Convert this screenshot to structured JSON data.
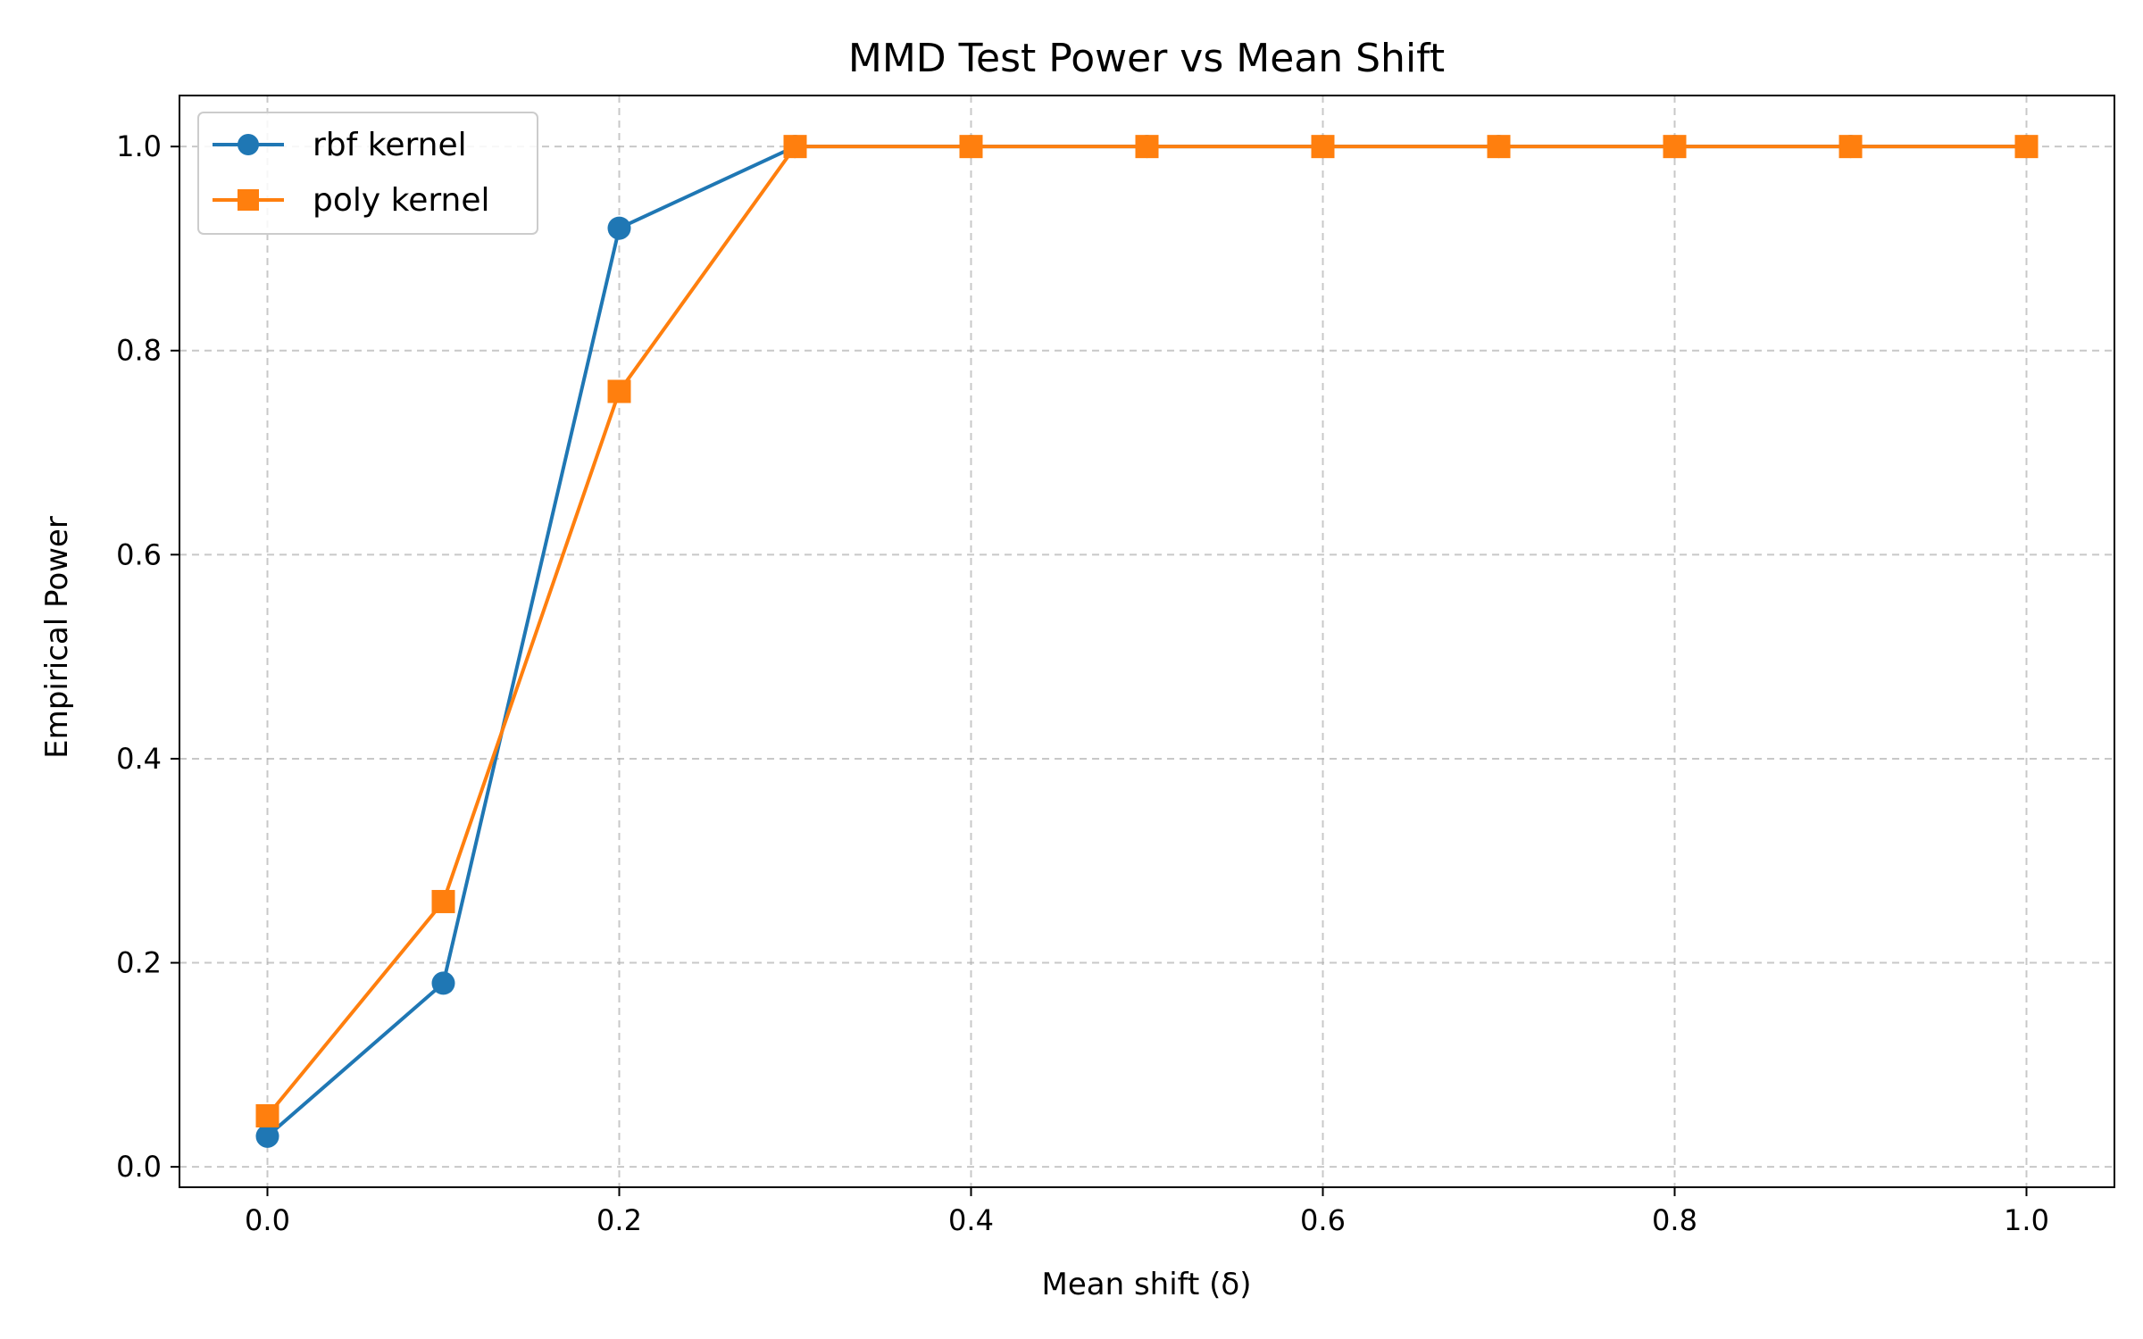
{
  "chart_data": {
    "type": "line",
    "title": "MMD Test Power vs Mean Shift",
    "xlabel": "Mean shift (δ)",
    "ylabel": "Empirical Power",
    "x": [
      0.0,
      0.1,
      0.2,
      0.3,
      0.4,
      0.5,
      0.6,
      0.7,
      0.8,
      0.9,
      1.0
    ],
    "xlim": [
      -0.05,
      1.05
    ],
    "ylim": [
      -0.02,
      1.05
    ],
    "xticks": [
      0.0,
      0.2,
      0.4,
      0.6,
      0.8,
      1.0
    ],
    "xtick_labels": [
      "0.0",
      "0.2",
      "0.4",
      "0.6",
      "0.8",
      "1.0"
    ],
    "yticks": [
      0.0,
      0.2,
      0.4,
      0.6,
      0.8,
      1.0
    ],
    "ytick_labels": [
      "0.0",
      "0.2",
      "0.4",
      "0.6",
      "0.8",
      "1.0"
    ],
    "grid": true,
    "legend_position": "top-left",
    "series": [
      {
        "name": "rbf kernel",
        "color": "#1f77b4",
        "marker": "circle",
        "values": [
          0.03,
          0.18,
          0.92,
          1.0,
          1.0,
          1.0,
          1.0,
          1.0,
          1.0,
          1.0,
          1.0
        ]
      },
      {
        "name": "poly kernel",
        "color": "#ff7f0e",
        "marker": "square",
        "values": [
          0.05,
          0.26,
          0.76,
          1.0,
          1.0,
          1.0,
          1.0,
          1.0,
          1.0,
          1.0,
          1.0
        ]
      }
    ]
  }
}
